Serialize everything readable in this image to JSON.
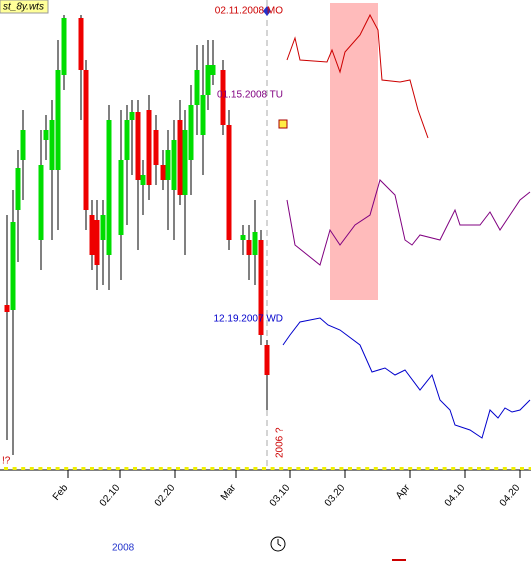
{
  "chart_data": {
    "type": "candlestick",
    "title": "st_8y.wts",
    "year_label": "2008",
    "marker_label": "2006 ?",
    "corner_label": "!?",
    "xlim": [
      0,
      531
    ],
    "ylim": [
      0,
      470
    ],
    "xticks": [
      {
        "value": 68,
        "label": "Feb"
      },
      {
        "value": 120,
        "label": "02.10"
      },
      {
        "value": 175,
        "label": "02.20"
      },
      {
        "value": 236,
        "label": "Mar"
      },
      {
        "value": 290,
        "label": "03.10"
      },
      {
        "value": 345,
        "label": "03.20"
      },
      {
        "value": 410,
        "label": "Apr"
      },
      {
        "value": 465,
        "label": "04.10"
      },
      {
        "value": 520,
        "label": "04.20"
      }
    ],
    "up_color": "#00dd00",
    "down_color": "#ee0000",
    "cursor_x": 267,
    "highlight_x": [
      330,
      378
    ],
    "highlight_color": "#ffbbbb",
    "x": [
      7,
      13,
      18,
      23,
      41,
      46,
      52,
      58,
      64,
      81,
      86,
      92,
      97,
      103,
      109,
      121,
      127,
      132,
      138,
      143,
      149,
      156,
      163,
      168,
      174,
      180,
      185,
      191,
      197,
      203,
      208,
      213,
      223,
      229,
      243,
      249,
      255,
      261,
      267
    ],
    "open": [
      165,
      160,
      260,
      310,
      230,
      330,
      300,
      300,
      395,
      452,
      400,
      255,
      250,
      230,
      215,
      235,
      310,
      350,
      358,
      285,
      360,
      340,
      305,
      290,
      280,
      350,
      275,
      310,
      365,
      335,
      375,
      395,
      400,
      345,
      230,
      230,
      215,
      230,
      125
    ],
    "high": [
      255,
      280,
      320,
      360,
      340,
      355,
      370,
      430,
      455,
      455,
      410,
      270,
      270,
      270,
      365,
      360,
      365,
      370,
      370,
      310,
      375,
      355,
      320,
      340,
      350,
      370,
      360,
      385,
      425,
      425,
      430,
      430,
      410,
      360,
      245,
      245,
      270,
      240,
      130
    ],
    "low": [
      30,
      15,
      208,
      270,
      200,
      310,
      230,
      240,
      380,
      350,
      240,
      200,
      180,
      185,
      180,
      190,
      245,
      295,
      220,
      255,
      270,
      285,
      280,
      240,
      230,
      265,
      215,
      275,
      335,
      295,
      360,
      385,
      335,
      220,
      215,
      190,
      185,
      125,
      60
    ],
    "close": [
      158,
      248,
      302,
      340,
      305,
      340,
      350,
      400,
      452,
      400,
      260,
      215,
      205,
      255,
      350,
      310,
      350,
      358,
      290,
      295,
      285,
      305,
      290,
      320,
      330,
      275,
      340,
      365,
      400,
      375,
      405,
      405,
      345,
      230,
      235,
      215,
      238,
      135,
      95
    ],
    "series": [
      {
        "name": "02.11.2008 MO",
        "color": "#cc0000",
        "x": [
          287,
          295,
          300,
          327,
          332,
          340,
          345,
          360,
          370,
          378,
          382,
          400,
          410,
          418,
          428
        ],
        "values": [
          410,
          432,
          410,
          408,
          420,
          398,
          418,
          435,
          455,
          440,
          390,
          388,
          390,
          360,
          332
        ]
      },
      {
        "name": "01.15.2008 TU",
        "color": "#800080",
        "x": [
          287,
          295,
          320,
          330,
          340,
          355,
          370,
          380,
          395,
          405,
          412,
          420,
          440,
          455,
          460,
          480,
          490,
          500,
          510,
          520,
          530
        ],
        "values": [
          270,
          225,
          205,
          240,
          225,
          245,
          255,
          290,
          275,
          230,
          225,
          235,
          230,
          260,
          245,
          245,
          258,
          240,
          255,
          270,
          278
        ]
      },
      {
        "name": "12.19.2007 WD",
        "color": "#0000cc",
        "x": [
          283,
          290,
          300,
          320,
          328,
          340,
          360,
          372,
          385,
          395,
          405,
          420,
          432,
          440,
          450,
          455,
          470,
          482,
          490,
          498,
          505,
          512,
          520,
          530
        ],
        "values": [
          125,
          135,
          148,
          152,
          145,
          140,
          125,
          98,
          102,
          95,
          100,
          80,
          95,
          70,
          60,
          45,
          40,
          32,
          60,
          52,
          62,
          58,
          60,
          70
        ]
      }
    ]
  }
}
